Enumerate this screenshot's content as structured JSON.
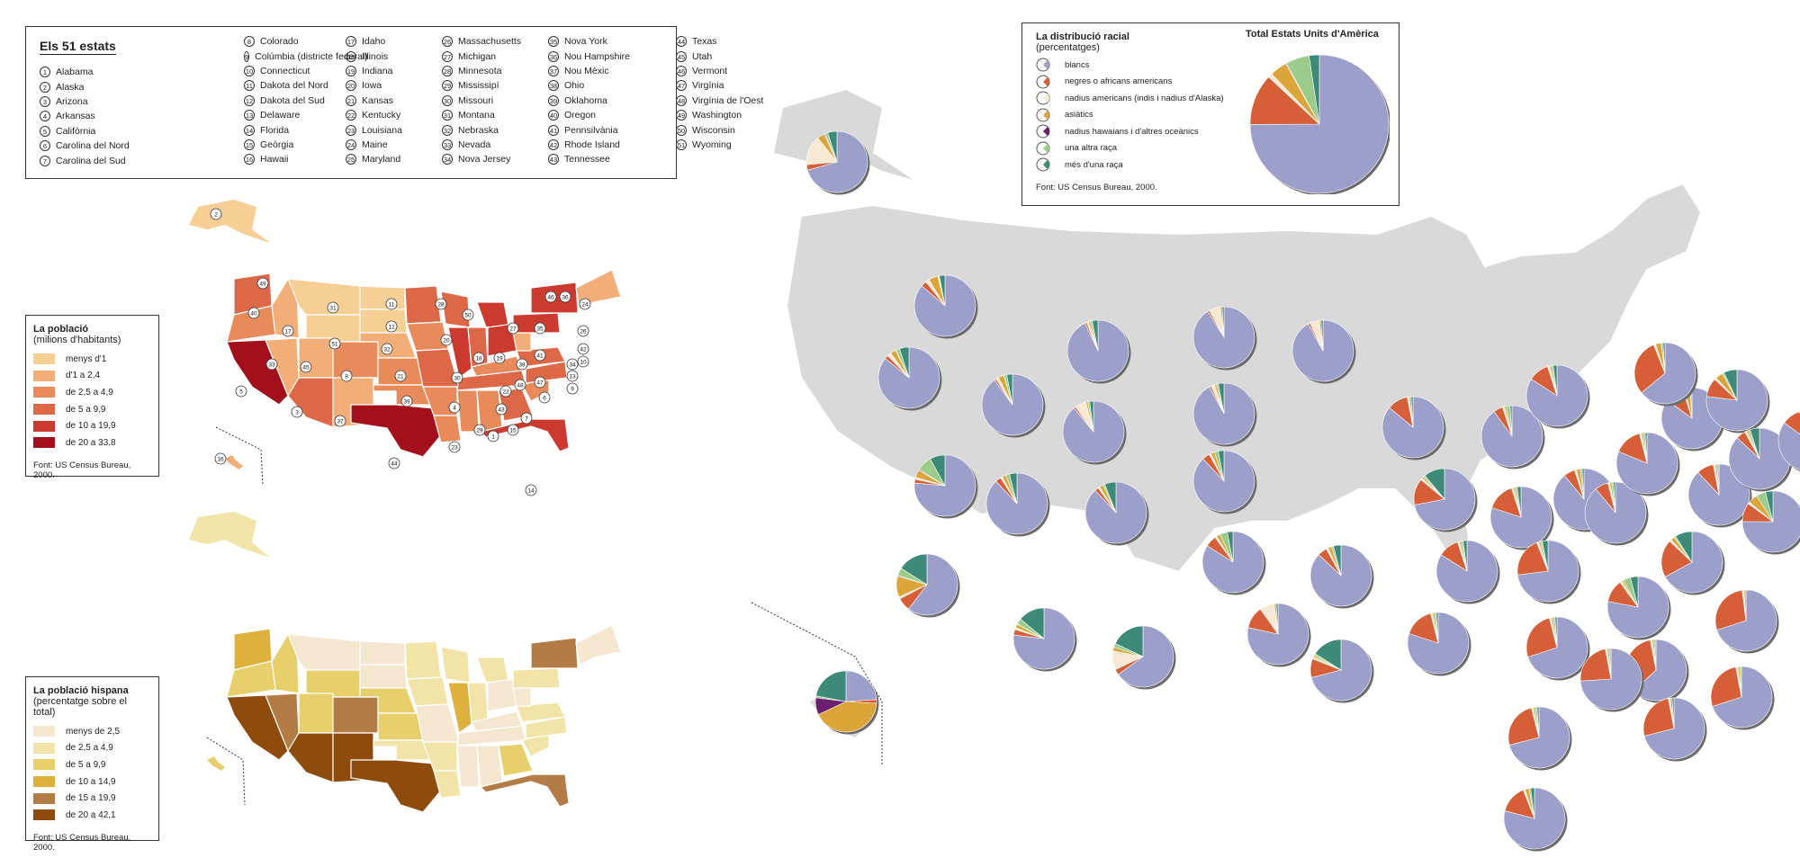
{
  "states_box": {
    "title": "Els 51 estats",
    "columns": [
      [
        [
          "1",
          "Alabama"
        ],
        [
          "2",
          "Alaska"
        ],
        [
          "3",
          "Arizona"
        ],
        [
          "4",
          "Arkansas"
        ],
        [
          "5",
          "Califòrnia"
        ],
        [
          "6",
          "Carolina del Nord"
        ],
        [
          "7",
          "Carolina del Sud"
        ]
      ],
      [
        [
          "8",
          "Colorado"
        ],
        [
          "9",
          "Colúmbia (districte federal)"
        ],
        [
          "10",
          "Connecticut"
        ],
        [
          "11",
          "Dakota del Nord"
        ],
        [
          "12",
          "Dakota del Sud"
        ],
        [
          "13",
          "Delaware"
        ],
        [
          "14",
          "Florida"
        ],
        [
          "15",
          "Geòrgia"
        ],
        [
          "16",
          "Hawaii"
        ]
      ],
      [
        [
          "17",
          "Idaho"
        ],
        [
          "18",
          "Illinois"
        ],
        [
          "19",
          "Indiana"
        ],
        [
          "20",
          "Iowa"
        ],
        [
          "21",
          "Kansas"
        ],
        [
          "22",
          "Kentucky"
        ],
        [
          "23",
          "Louisiana"
        ],
        [
          "24",
          "Maine"
        ],
        [
          "25",
          "Maryland"
        ]
      ],
      [
        [
          "26",
          "Massachusetts"
        ],
        [
          "27",
          "Michigan"
        ],
        [
          "28",
          "Minnesota"
        ],
        [
          "29",
          "Mississipí"
        ],
        [
          "30",
          "Missouri"
        ],
        [
          "31",
          "Montana"
        ],
        [
          "32",
          "Nebraska"
        ],
        [
          "33",
          "Nevada"
        ],
        [
          "34",
          "Nova Jersey"
        ]
      ],
      [
        [
          "35",
          "Nova York"
        ],
        [
          "36",
          "Nou Hampshire"
        ],
        [
          "37",
          "Nou Mèxic"
        ],
        [
          "38",
          "Ohio"
        ],
        [
          "39",
          "Oklahoma"
        ],
        [
          "40",
          "Oregon"
        ],
        [
          "41",
          "Pennsilvània"
        ],
        [
          "42",
          "Rhode Island"
        ],
        [
          "43",
          "Tennessee"
        ]
      ],
      [
        [
          "44",
          "Texas"
        ],
        [
          "45",
          "Utah"
        ],
        [
          "46",
          "Vermont"
        ],
        [
          "47",
          "Virgínia"
        ],
        [
          "48",
          "Virgínia de l'Oest"
        ],
        [
          "49",
          "Washington"
        ],
        [
          "50",
          "Wisconsin"
        ],
        [
          "51",
          "Wyoming"
        ]
      ]
    ]
  },
  "population_legend": {
    "title": "La població",
    "subtitle": "(milions d'habitants)",
    "classes": [
      {
        "label": "menys d'1",
        "color": "#f7cf95"
      },
      {
        "label": "d'1 a 2,4",
        "color": "#f2ae76"
      },
      {
        "label": "de 2,5 a 4,9",
        "color": "#e88a5a"
      },
      {
        "label": "de 5 a 9,9",
        "color": "#dd6848"
      },
      {
        "label": "de 10 a 19,9",
        "color": "#cc3a2f"
      },
      {
        "label": "de 20 a 33,8",
        "color": "#a30f1a"
      }
    ],
    "source": "Font: US Census Bureau, 2000."
  },
  "hispanic_legend": {
    "title": "La població hispana",
    "subtitle": "(percentatge sobre el total)",
    "classes": [
      {
        "label": "menys de 2,5",
        "color": "#f4e6cf"
      },
      {
        "label": "de 2,5 a 4,9",
        "color": "#f2e4a8"
      },
      {
        "label": "de 5 a 9,9",
        "color": "#e7cf6c"
      },
      {
        "label": "de 10 a 14,9",
        "color": "#deb13c"
      },
      {
        "label": "de 15 a 19,9",
        "color": "#b37b45"
      },
      {
        "label": "de 20 a 42,1",
        "color": "#8e4b0c"
      }
    ],
    "source": "Font: US Census Bureau, 2000."
  },
  "race_legend": {
    "title": "La distribució racial",
    "subtitle": "(percentatges)",
    "categories": [
      {
        "label": "blancs",
        "color": "#9b9fca"
      },
      {
        "label": "negres o africans americans",
        "color": "#d65f38"
      },
      {
        "label": "nadius americans (indis i nadius d'Alaska)",
        "color": "#f6e8d2"
      },
      {
        "label": "asiàtics",
        "color": "#dba53a"
      },
      {
        "label": "nadius hawaians i d'altres oceànics",
        "color": "#6b1f6f"
      },
      {
        "label": "una altra raça",
        "color": "#9ccc8a"
      },
      {
        "label": "més d'una raça",
        "color": "#3d8a78"
      }
    ],
    "total_title": "Total Estats Units d'Amèrica",
    "total_pie": [
      75,
      12,
      1,
      4,
      0.2,
      5.5,
      2.4
    ],
    "source": "Font: US Census Bureau, 2000."
  },
  "map_colors": {
    "land": "#d9d9d9",
    "shadow": "#666666"
  }
}
